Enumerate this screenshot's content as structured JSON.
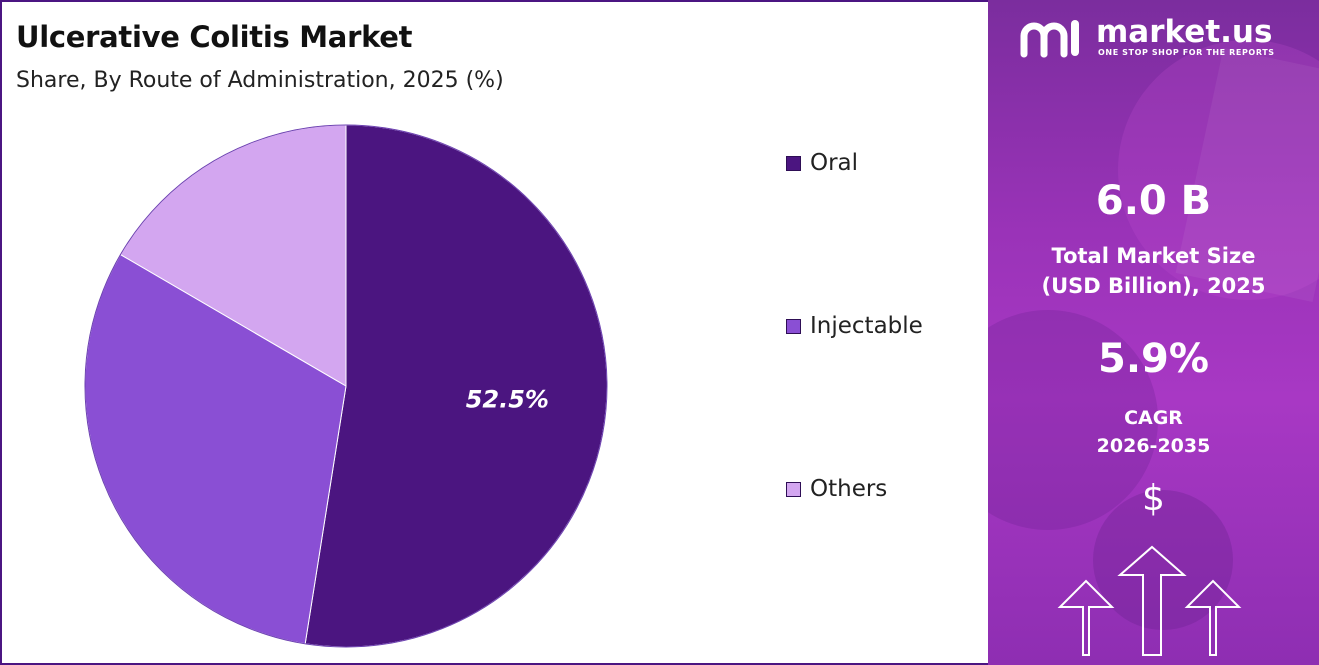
{
  "title": "Ulcerative Colitis Market",
  "subtitle": "Share, By Route of Administration, 2025 (%)",
  "chart_data": {
    "type": "pie",
    "title": "Ulcerative Colitis Market",
    "subtitle": "Share, By Route of Administration, 2025 (%)",
    "categories": [
      "Oral",
      "Injectable",
      "Others"
    ],
    "values": [
      52.5,
      30.9,
      16.6
    ],
    "colors": [
      "#4b1580",
      "#8a4fd4",
      "#d3a6f0"
    ],
    "data_labels": [
      "52.5%",
      "",
      ""
    ],
    "legend": "right"
  },
  "legend": {
    "items": [
      {
        "label": "Oral",
        "color": "#4b1580"
      },
      {
        "label": "Injectable",
        "color": "#8a4fd4"
      },
      {
        "label": "Others",
        "color": "#d3a6f0"
      }
    ]
  },
  "panel": {
    "brand_name": "market.us",
    "brand_tagline": "ONE STOP SHOP FOR THE REPORTS",
    "market_size_value": "6.0 B",
    "market_size_label_1": "Total Market Size",
    "market_size_label_2": "(USD Billion), 2025",
    "cagr_value": "5.9%",
    "cagr_label_1": "CAGR",
    "cagr_label_2": "2026-2035",
    "currency_symbol": "$",
    "icons": [
      "market-us-logo-icon",
      "up-arrow-icon"
    ]
  }
}
